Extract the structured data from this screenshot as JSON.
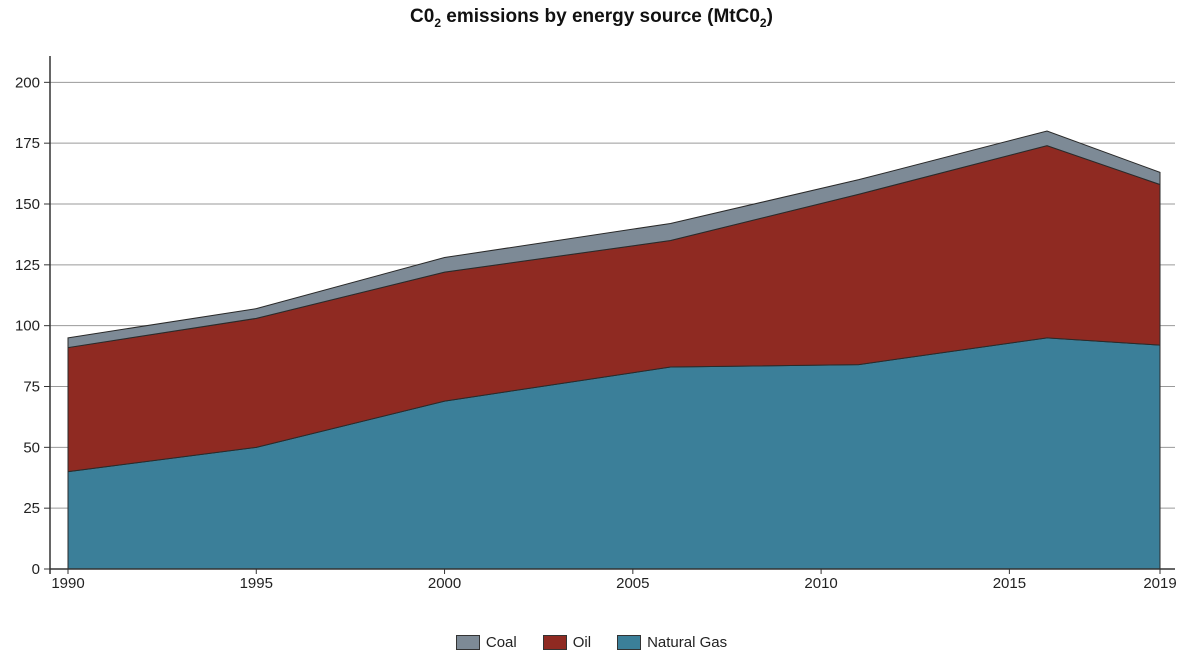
{
  "chart_data": {
    "type": "area",
    "stacked": true,
    "title": {
      "prefix": "C0",
      "sub1": "2",
      "middle": " emissions by energy source (MtC0",
      "sub2": "2",
      "suffix": ")"
    },
    "x": [
      1990,
      1995,
      2000,
      2006,
      2011,
      2016,
      2019
    ],
    "x_ticks": [
      1990,
      1995,
      2000,
      2005,
      2010,
      2015,
      2019
    ],
    "y_ticks": [
      0,
      25,
      50,
      75,
      100,
      125,
      150,
      175,
      200
    ],
    "ylim": [
      0,
      210
    ],
    "grid": "horizontal",
    "legend_position": "bottom",
    "series": [
      {
        "name": "Natural Gas",
        "color": "#3b7f99",
        "values": [
          40,
          50,
          69,
          83,
          84,
          95,
          92
        ]
      },
      {
        "name": "Oil",
        "color": "#8f2a22",
        "values": [
          51,
          53,
          53,
          52,
          70,
          79,
          66
        ]
      },
      {
        "name": "Coal",
        "color": "#7d8a96",
        "values": [
          4,
          4,
          6,
          7,
          6,
          6,
          5
        ]
      }
    ],
    "legend": [
      {
        "label": "Coal",
        "color": "#7d8a96"
      },
      {
        "label": "Oil",
        "color": "#8f2a22"
      },
      {
        "label": "Natural Gas",
        "color": "#3b7f99"
      }
    ]
  }
}
